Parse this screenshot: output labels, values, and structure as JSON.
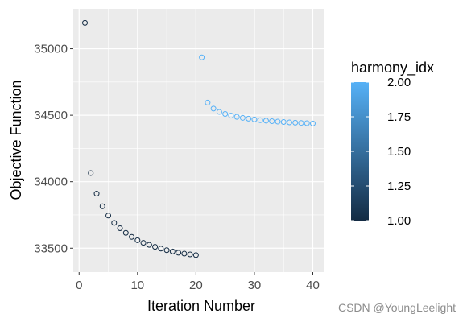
{
  "chart_data": {
    "type": "scatter",
    "xlabel": "Iteration Number",
    "ylabel": "Objective Function",
    "xlim": [
      -1,
      42
    ],
    "ylim": [
      33320,
      35300
    ],
    "x_ticks": [
      0,
      10,
      20,
      30,
      40
    ],
    "y_ticks": [
      33500,
      34000,
      34500,
      35000
    ],
    "x_tick_labels": [
      "0",
      "10",
      "20",
      "30",
      "40"
    ],
    "y_tick_labels": [
      "33500",
      "34000",
      "34500",
      "35000"
    ],
    "grid": true,
    "legend": {
      "title": "harmony_idx",
      "placement": "right",
      "type": "colorbar",
      "range": [
        1.0,
        2.0
      ],
      "ticks": [
        "1.00",
        "1.25",
        "1.50",
        "1.75",
        "2.00"
      ],
      "color_low": "#132B43",
      "color_high": "#56B1F7"
    },
    "series": [
      {
        "harmony_idx": 1,
        "color": "#132B43",
        "x": [
          1,
          2,
          3,
          4,
          5,
          6,
          7,
          8,
          9,
          10,
          11,
          12,
          13,
          14,
          15,
          16,
          17,
          18,
          19,
          20
        ],
        "y": [
          35195,
          34065,
          33910,
          33815,
          33745,
          33690,
          33650,
          33615,
          33585,
          33560,
          33540,
          33525,
          33510,
          33497,
          33485,
          33475,
          33466,
          33459,
          33453,
          33448
        ]
      },
      {
        "harmony_idx": 2,
        "color": "#56B1F7",
        "x": [
          21,
          22,
          23,
          24,
          25,
          26,
          27,
          28,
          29,
          30,
          31,
          32,
          33,
          34,
          35,
          36,
          37,
          38,
          39,
          40
        ],
        "y": [
          34935,
          34595,
          34550,
          34525,
          34510,
          34497,
          34488,
          34480,
          34474,
          34468,
          34463,
          34459,
          34455,
          34452,
          34449,
          34446,
          34444,
          34442,
          34440,
          34438
        ]
      }
    ]
  },
  "watermark": "CSDN @YoungLeelight"
}
